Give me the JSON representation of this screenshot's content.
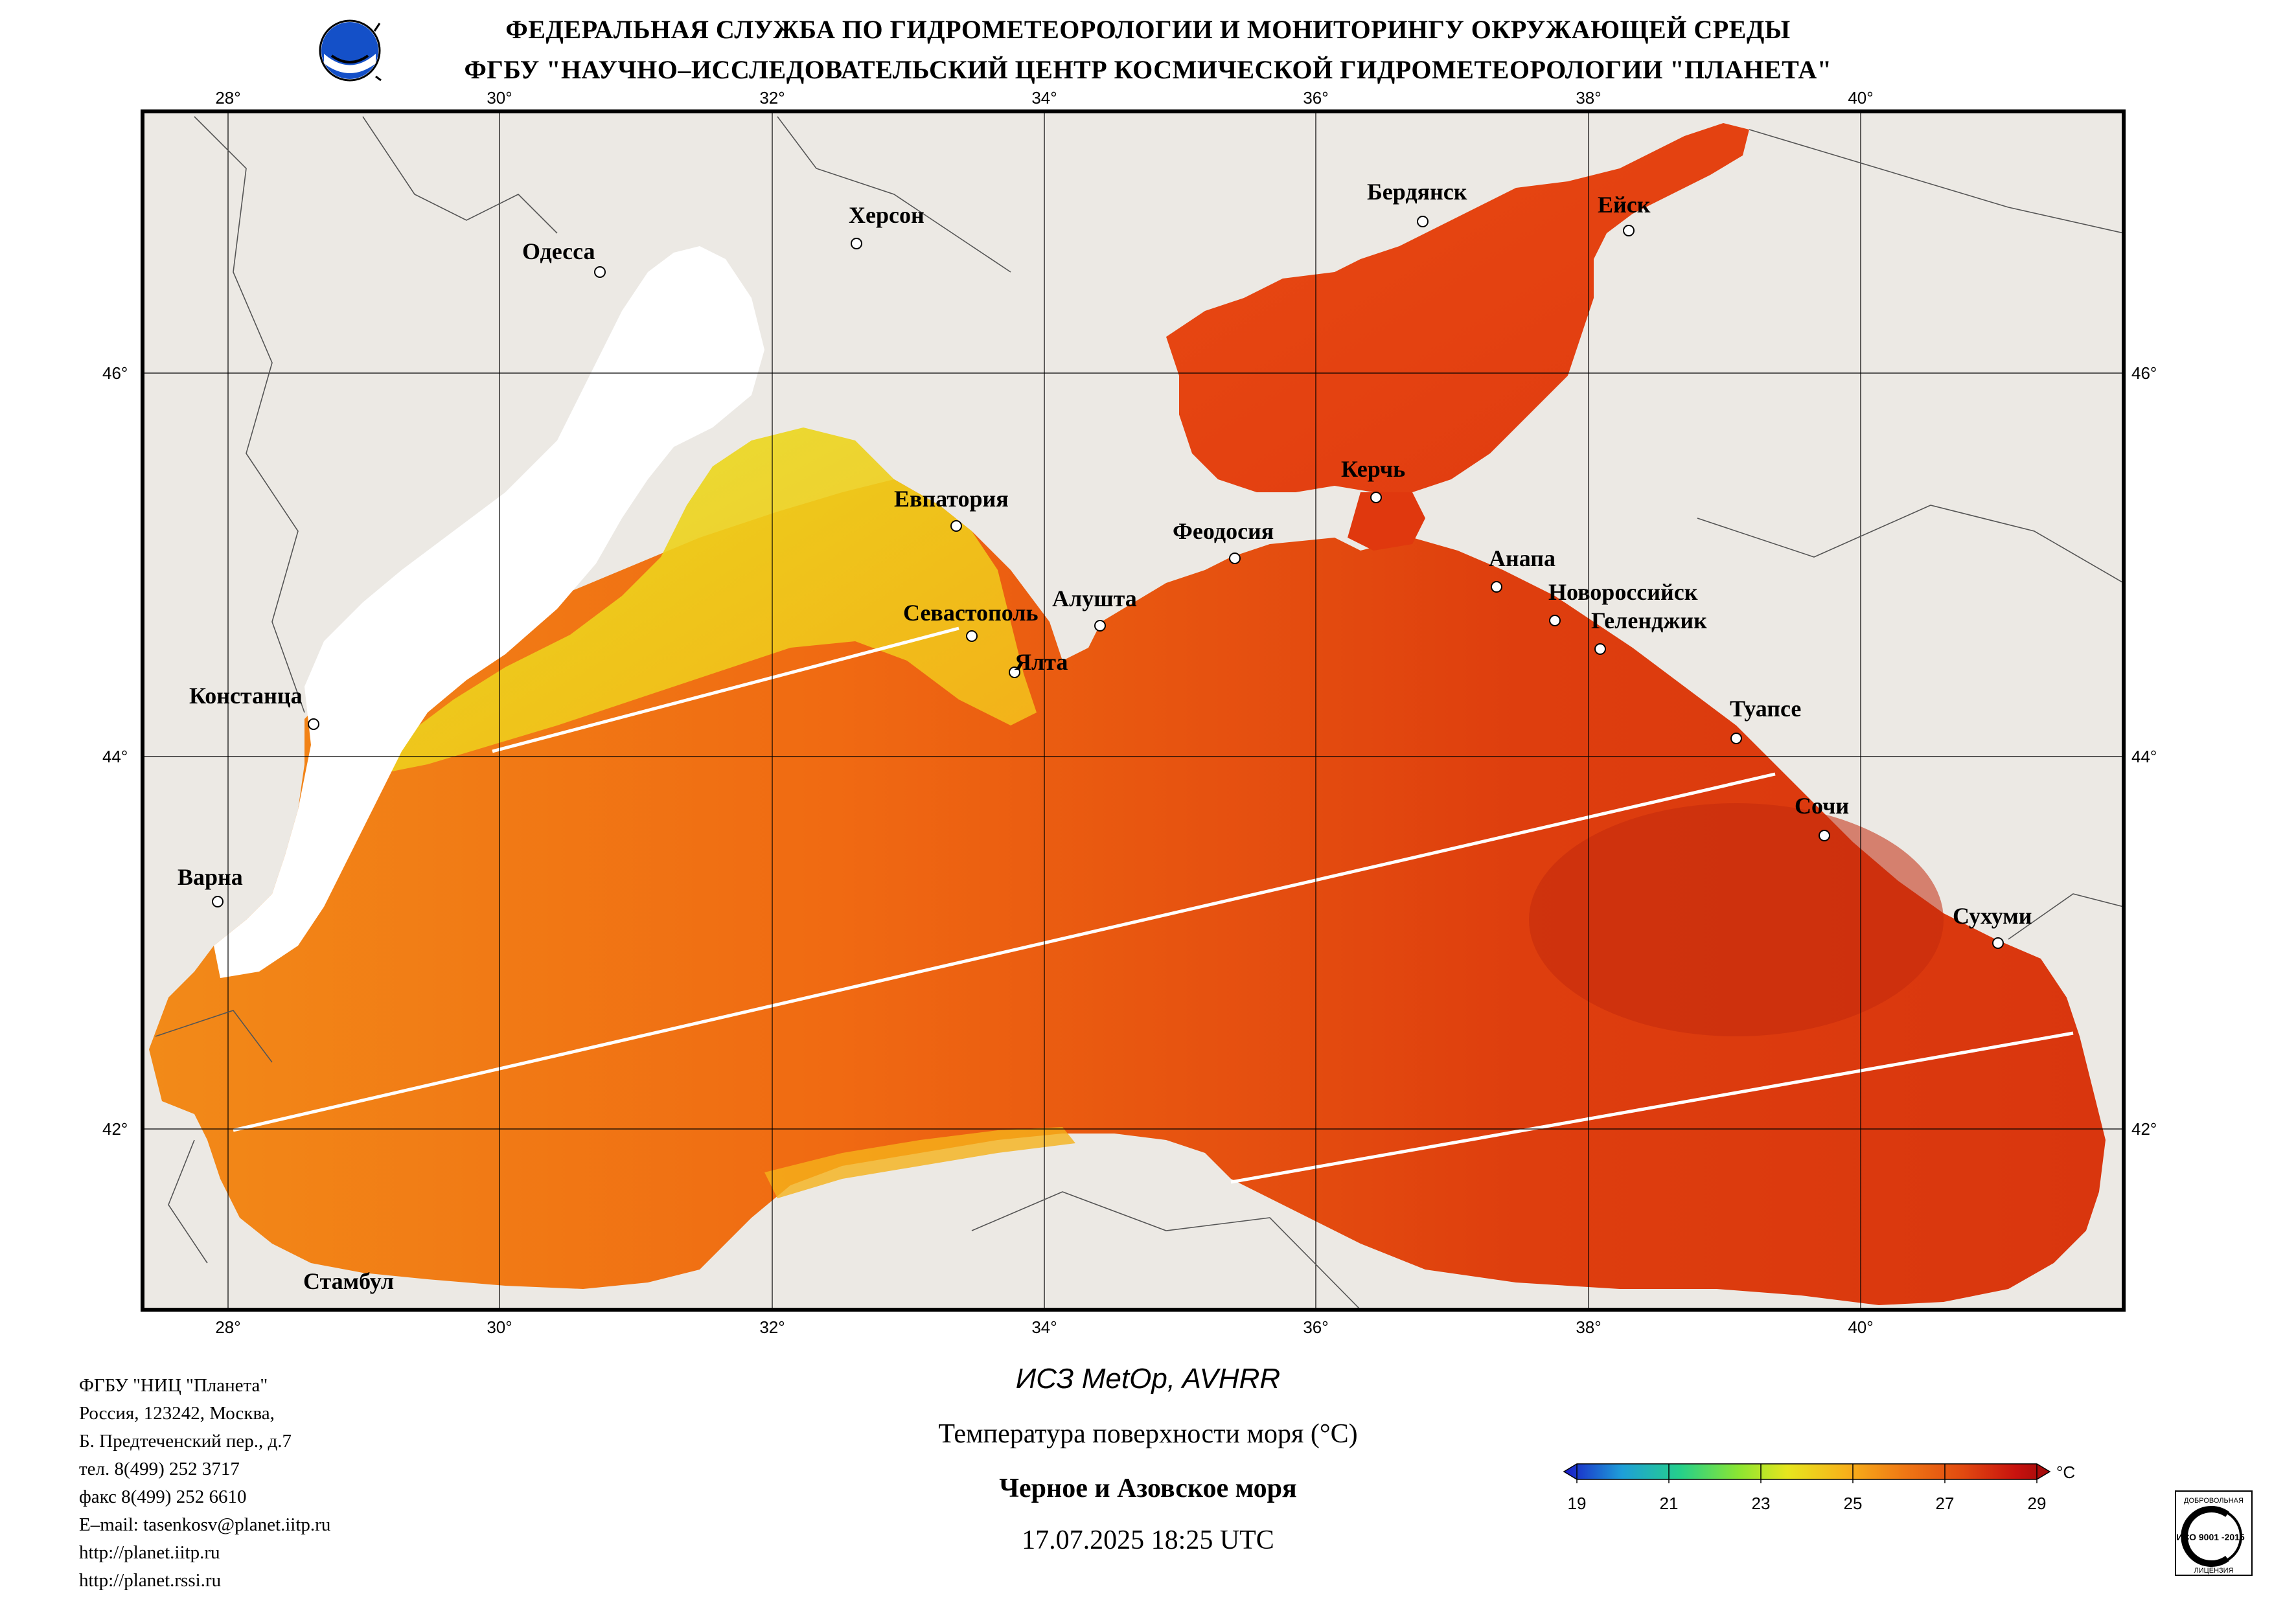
{
  "header": {
    "line1": "ФЕДЕРАЛЬНАЯ СЛУЖБА ПО ГИДРОМЕТЕОРОЛОГИИ И МОНИТОРИНГУ ОКРУЖАЮЩЕЙ СРЕДЫ",
    "line2": "ФГБУ \"НАУЧНО–ИССЛЕДОВАТЕЛЬСКИЙ ЦЕНТР КОСМИЧЕСКОЙ ГИДРОМЕТЕОРОЛОГИИ \"ПЛАНЕТА\""
  },
  "map": {
    "lon_ticks": [
      "28°",
      "30°",
      "32°",
      "34°",
      "36°",
      "38°",
      "40°"
    ],
    "lat_ticks": [
      "46°",
      "44°",
      "42°"
    ],
    "cities": [
      {
        "name": "Херсон"
      },
      {
        "name": "Одесса"
      },
      {
        "name": "Бердянск"
      },
      {
        "name": "Ейск"
      },
      {
        "name": "Евпатория"
      },
      {
        "name": "Керчь"
      },
      {
        "name": "Феодосия"
      },
      {
        "name": "Анапа"
      },
      {
        "name": "Алушта"
      },
      {
        "name": "Севастополь"
      },
      {
        "name": "Новороссийск"
      },
      {
        "name": "Геленджик"
      },
      {
        "name": "Ялта"
      },
      {
        "name": "Констанца"
      },
      {
        "name": "Туапсе"
      },
      {
        "name": "Сочи"
      },
      {
        "name": "Варна"
      },
      {
        "name": "Сухуми"
      },
      {
        "name": "Стамбул"
      }
    ],
    "colors": {
      "land": "#ECE9E4",
      "sea_hot": "#D9360E",
      "sea_mid": "#F06A12",
      "sea_cool": "#F7B21A",
      "cloud": "#FFFFFF"
    }
  },
  "contact": {
    "lines": [
      "ФГБУ \"НИЦ \"Планета\"",
      "Россия, 123242, Москва,",
      "Б. Предтеченский пер., д.7",
      "тел. 8(499) 252 3717",
      "факс 8(499) 252 6610",
      "E–mail: tasenkosv@planet.iitp.ru",
      "http://planet.iitp.ru",
      "http://planet.rssi.ru"
    ]
  },
  "footer": {
    "satellite": "ИСЗ MetOp, AVHRR",
    "parameter": "Температура поверхности моря (°C)",
    "region": "Черное и Азовское моря",
    "datetime": "17.07.2025 18:25 UTC"
  },
  "legend": {
    "unit": "°C",
    "min": 19,
    "max": 29,
    "labels": [
      "19",
      "21",
      "23",
      "25",
      "27",
      "29"
    ],
    "colors": [
      "#1A1AC8",
      "#1E9FD8",
      "#25D08A",
      "#8CE632",
      "#E6E61E",
      "#F7B21A",
      "#F07814",
      "#E24A10",
      "#C8120E",
      "#A00A0A"
    ]
  },
  "badge": {
    "top_text": "ДОБРОВОЛЬНАЯ",
    "main": "ИСО 9001 -2015",
    "bottom_text": "ЛИЦЕНЗИЯ"
  }
}
